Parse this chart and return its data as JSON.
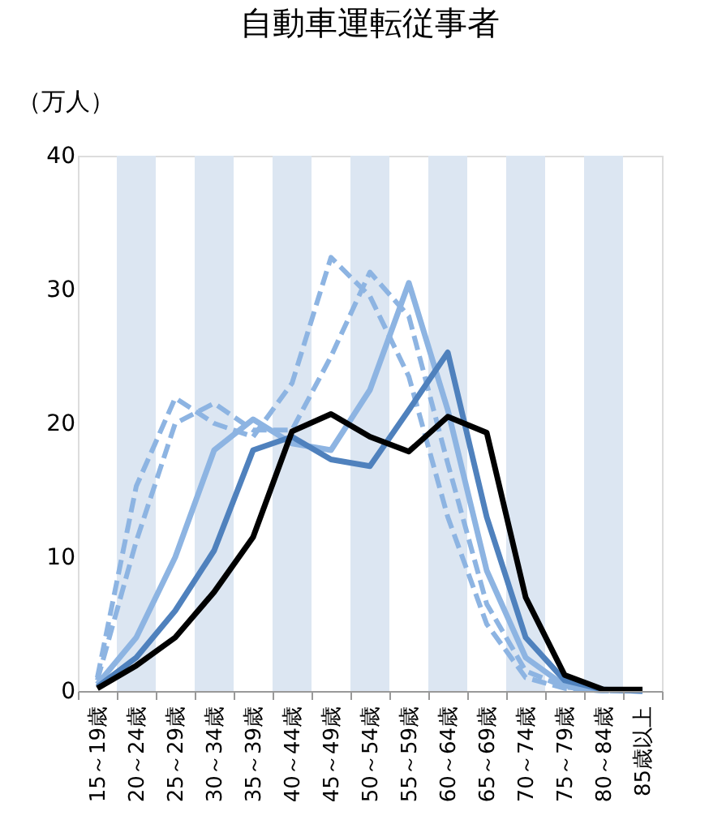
{
  "chart_data": {
    "type": "line",
    "title": "自動車運転従事者",
    "ylabel": "（万人）",
    "categories": [
      "15～19歳",
      "20～24歳",
      "25～29歳",
      "30～34歳",
      "35～39歳",
      "40～44歳",
      "45～49歳",
      "50～54歳",
      "55～59歳",
      "60～64歳",
      "65～69歳",
      "70～74歳",
      "75～79歳",
      "80～84歳",
      "85歳以上"
    ],
    "series": [
      {
        "color": "#8db4e2",
        "line_style": "dashed",
        "values": [
          1,
          15.3,
          21.9,
          20,
          19,
          23,
          32.4,
          29.5,
          23.5,
          13,
          5,
          1,
          0.2,
          0,
          0
        ]
      },
      {
        "color": "#8db4e2",
        "line_style": "dashed",
        "values": [
          0.8,
          11.2,
          20,
          21.5,
          19.5,
          19.5,
          25,
          31.3,
          28,
          17,
          6.5,
          1.5,
          0.3,
          0,
          0
        ]
      },
      {
        "color": "#8db4e2",
        "line_style": "solid",
        "values": [
          0.5,
          4,
          10,
          18,
          20.3,
          18.5,
          18,
          22.5,
          30.5,
          21,
          9,
          2.5,
          0.4,
          0.1,
          0
        ]
      },
      {
        "color": "#4f81bd",
        "line_style": "solid",
        "values": [
          0.3,
          2.5,
          6,
          10.5,
          18,
          19,
          17.3,
          16.8,
          21,
          25.3,
          13,
          4,
          0.8,
          0.1,
          0
        ]
      },
      {
        "color": "#000000",
        "line_style": "solid",
        "values": [
          0.2,
          1.9,
          4,
          7.4,
          11.5,
          19.4,
          20.7,
          19,
          17.9,
          20.5,
          19.3,
          7,
          1.2,
          0.1,
          0.1
        ]
      }
    ],
    "bands": [
      {
        "axis": "x",
        "from": "20～24歳",
        "to": "20～24歳",
        "color": "#dce6f2"
      },
      {
        "axis": "x",
        "from": "30～34歳",
        "to": "30～34歳",
        "color": "#dce6f2"
      },
      {
        "axis": "x",
        "from": "40～44歳",
        "to": "40～44歳",
        "color": "#dce6f2"
      },
      {
        "axis": "x",
        "from": "50～54歳",
        "to": "50～54歳",
        "color": "#dce6f2"
      },
      {
        "axis": "x",
        "from": "60～64歳",
        "to": "60～64歳",
        "color": "#dce6f2"
      },
      {
        "axis": "x",
        "from": "70～74歳",
        "to": "70～74歳",
        "color": "#dce6f2"
      },
      {
        "axis": "x",
        "from": "80～84歳",
        "to": "80～84歳",
        "color": "#dce6f2"
      }
    ],
    "ylim": [
      0,
      40
    ],
    "yticks": [
      0,
      10,
      20,
      30,
      40
    ],
    "grid": false
  }
}
